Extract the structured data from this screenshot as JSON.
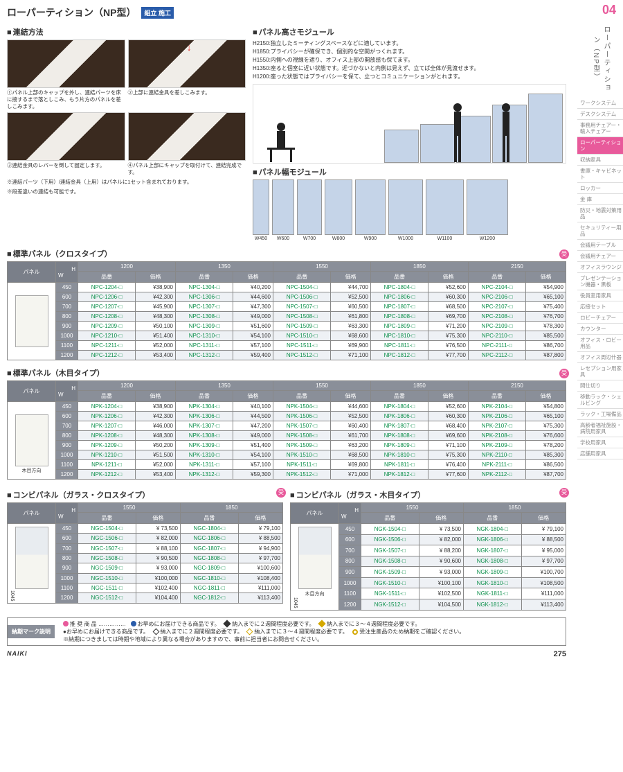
{
  "page": {
    "title": "ローパーティション（NP型）",
    "badge": "組立\n施工",
    "section_number": "04",
    "brand": "NAIKI",
    "page_number": "275"
  },
  "connection": {
    "title": "連結方法",
    "captions": [
      "①パネル上部のキャップを外し、連結パーツを床に接するまで落としこみ、もう片方のパネルを差しこみます。",
      "②上部に連結金具を差しこみます。",
      "③連結金具のレバーを倒して固定します。",
      "④パネル上部にキャップを取付けて、連結完成です。"
    ],
    "note1": "※連結パーツ（下用）/連結金具（上用）はパネルに1セット含まれております。",
    "note2": "※段差違いの連結も可能です。"
  },
  "height_module": {
    "title": "パネル高さモジュール",
    "desc": "H2150:独立したミーティングスペースなどに適しています。\nH1850:プライバシーが確保でき、個別的な空間がつくれます。\nH1550:内側への視線を遮り、オフィス上部の開放感も保てます。\nH1350:座ると個室に近い状態です。近づかないと内側は見えず、立てば全体が見渡せます。\nH1200:座った状態ではプライバシーを保て、立つとコミュニケーションがとれます。",
    "heights": [
      "H1200",
      "H1350",
      "H1550",
      "H1850",
      "H2150"
    ]
  },
  "width_module": {
    "title": "パネル幅モジュール",
    "widths": [
      "W450",
      "W600",
      "W700",
      "W800",
      "W900",
      "W1000",
      "W1100",
      "W1200"
    ]
  },
  "table_cloth": {
    "title": "標準パネル（クロスタイプ）",
    "panel_label": "パネル",
    "h_label": "H",
    "w_label": "W",
    "code_label": "品番",
    "price_label": "価格",
    "heights": [
      "1200",
      "1350",
      "1550",
      "1850",
      "2150"
    ],
    "rows": [
      {
        "w": "450",
        "cells": [
          [
            "NPC-1204-□",
            "¥38,900"
          ],
          [
            "NPC-1304-□",
            "¥40,200"
          ],
          [
            "NPC-1504-□",
            "¥44,700"
          ],
          [
            "NPC-1804-□",
            "¥52,600"
          ],
          [
            "NPC-2104-□",
            "¥54,900"
          ]
        ]
      },
      {
        "w": "600",
        "cells": [
          [
            "NPC-1206-□",
            "¥42,300"
          ],
          [
            "NPC-1306-□",
            "¥44,600"
          ],
          [
            "NPC-1506-□",
            "¥52,500"
          ],
          [
            "NPC-1806-□",
            "¥60,300"
          ],
          [
            "NPC-2106-□",
            "¥65,100"
          ]
        ]
      },
      {
        "w": "700",
        "cells": [
          [
            "NPC-1207-□",
            "¥45,900"
          ],
          [
            "NPC-1307-□",
            "¥47,300"
          ],
          [
            "NPC-1507-□",
            "¥60,500"
          ],
          [
            "NPC-1807-□",
            "¥68,500"
          ],
          [
            "NPC-2107-□",
            "¥75,400"
          ]
        ]
      },
      {
        "w": "800",
        "cells": [
          [
            "NPC-1208-□",
            "¥48,300"
          ],
          [
            "NPC-1308-□",
            "¥49,000"
          ],
          [
            "NPC-1508-□",
            "¥61,800"
          ],
          [
            "NPC-1808-□",
            "¥69,700"
          ],
          [
            "NPC-2108-□",
            "¥76,700"
          ]
        ]
      },
      {
        "w": "900",
        "cells": [
          [
            "NPC-1209-□",
            "¥50,100"
          ],
          [
            "NPC-1309-□",
            "¥51,600"
          ],
          [
            "NPC-1509-□",
            "¥63,300"
          ],
          [
            "NPC-1809-□",
            "¥71,200"
          ],
          [
            "NPC-2109-□",
            "¥78,300"
          ]
        ]
      },
      {
        "w": "1000",
        "cells": [
          [
            "NPC-1210-□",
            "¥51,400"
          ],
          [
            "NPC-1310-□",
            "¥54,100"
          ],
          [
            "NPC-1510-□",
            "¥68,600"
          ],
          [
            "NPC-1810-□",
            "¥75,300"
          ],
          [
            "NPC-2110-□",
            "¥85,500"
          ]
        ]
      },
      {
        "w": "1100",
        "cells": [
          [
            "NPC-1211-□",
            "¥52,000"
          ],
          [
            "NPC-1311-□",
            "¥57,100"
          ],
          [
            "NPC-1511-□",
            "¥69,900"
          ],
          [
            "NPC-1811-□",
            "¥76,500"
          ],
          [
            "NPC-2111-□",
            "¥86,700"
          ]
        ]
      },
      {
        "w": "1200",
        "cells": [
          [
            "NPC-1212-□",
            "¥53,400"
          ],
          [
            "NPC-1312-□",
            "¥59,400"
          ],
          [
            "NPC-1512-□",
            "¥71,100"
          ],
          [
            "NPC-1812-□",
            "¥77,700"
          ],
          [
            "NPC-2112-□",
            "¥87,800"
          ]
        ]
      }
    ]
  },
  "table_wood": {
    "title": "標準パネル（木目タイプ）",
    "rows": [
      {
        "w": "450",
        "cells": [
          [
            "NPK-1204-□",
            "¥38,900"
          ],
          [
            "NPK-1304-□",
            "¥40,100"
          ],
          [
            "NPK-1504-□",
            "¥44,600"
          ],
          [
            "NPK-1804-□",
            "¥52,600"
          ],
          [
            "NPK-2104-□",
            "¥54,800"
          ]
        ]
      },
      {
        "w": "600",
        "cells": [
          [
            "NPK-1206-□",
            "¥42,300"
          ],
          [
            "NPK-1306-□",
            "¥44,500"
          ],
          [
            "NPK-1506-□",
            "¥52,500"
          ],
          [
            "NPK-1806-□",
            "¥60,300"
          ],
          [
            "NPK-2106-□",
            "¥65,100"
          ]
        ]
      },
      {
        "w": "700",
        "cells": [
          [
            "NPK-1207-□",
            "¥46,000"
          ],
          [
            "NPK-1307-□",
            "¥47,200"
          ],
          [
            "NPK-1507-□",
            "¥60,400"
          ],
          [
            "NPK-1807-□",
            "¥68,400"
          ],
          [
            "NPK-2107-□",
            "¥75,300"
          ]
        ]
      },
      {
        "w": "800",
        "cells": [
          [
            "NPK-1208-□",
            "¥48,300"
          ],
          [
            "NPK-1308-□",
            "¥49,000"
          ],
          [
            "NPK-1508-□",
            "¥61,700"
          ],
          [
            "NPK-1808-□",
            "¥69,600"
          ],
          [
            "NPK-2108-□",
            "¥76,600"
          ]
        ]
      },
      {
        "w": "900",
        "cells": [
          [
            "NPK-1209-□",
            "¥50,200"
          ],
          [
            "NPK-1309-□",
            "¥51,400"
          ],
          [
            "NPK-1509-□",
            "¥63,200"
          ],
          [
            "NPK-1809-□",
            "¥71,100"
          ],
          [
            "NPK-2109-□",
            "¥78,200"
          ]
        ]
      },
      {
        "w": "1000",
        "cells": [
          [
            "NPK-1210-□",
            "¥51,500"
          ],
          [
            "NPK-1310-□",
            "¥54,100"
          ],
          [
            "NPK-1510-□",
            "¥68,500"
          ],
          [
            "NPK-1810-□",
            "¥75,300"
          ],
          [
            "NPK-2110-□",
            "¥85,300"
          ]
        ]
      },
      {
        "w": "1100",
        "cells": [
          [
            "NPK-1211-□",
            "¥52,000"
          ],
          [
            "NPK-1311-□",
            "¥57,100"
          ],
          [
            "NPK-1511-□",
            "¥69,800"
          ],
          [
            "NPK-1811-□",
            "¥76,400"
          ],
          [
            "NPK-2111-□",
            "¥86,500"
          ]
        ]
      },
      {
        "w": "1200",
        "cells": [
          [
            "NPK-1212-□",
            "¥53,400"
          ],
          [
            "NPK-1312-□",
            "¥59,300"
          ],
          [
            "NPK-1512-□",
            "¥71,000"
          ],
          [
            "NPK-1812-□",
            "¥77,600"
          ],
          [
            "NPK-2112-□",
            "¥87,700"
          ]
        ]
      }
    ]
  },
  "table_glass_cloth": {
    "title": "コンビパネル（ガラス・クロスタイプ）",
    "heights": [
      "1550",
      "1850"
    ],
    "dim": "1045",
    "rows": [
      {
        "w": "450",
        "cells": [
          [
            "NGC-1504-□",
            "¥ 73,500"
          ],
          [
            "NGC-1804-□",
            "¥ 79,100"
          ]
        ]
      },
      {
        "w": "600",
        "cells": [
          [
            "NGC-1506-□",
            "¥ 82,000"
          ],
          [
            "NGC-1806-□",
            "¥ 88,500"
          ]
        ]
      },
      {
        "w": "700",
        "cells": [
          [
            "NGC-1507-□",
            "¥ 88,100"
          ],
          [
            "NGC-1807-□",
            "¥ 94,900"
          ]
        ]
      },
      {
        "w": "800",
        "cells": [
          [
            "NGC-1508-□",
            "¥ 90,500"
          ],
          [
            "NGC-1808-□",
            "¥ 97,700"
          ]
        ]
      },
      {
        "w": "900",
        "cells": [
          [
            "NGC-1509-□",
            "¥ 93,000"
          ],
          [
            "NGC-1809-□",
            "¥100,600"
          ]
        ]
      },
      {
        "w": "1000",
        "cells": [
          [
            "NGC-1510-□",
            "¥100,000"
          ],
          [
            "NGC-1810-□",
            "¥108,400"
          ]
        ]
      },
      {
        "w": "1100",
        "cells": [
          [
            "NGC-1511-□",
            "¥102,400"
          ],
          [
            "NGC-1811-□",
            "¥111,000"
          ]
        ]
      },
      {
        "w": "1200",
        "cells": [
          [
            "NGC-1512-□",
            "¥104,400"
          ],
          [
            "NGC-1812-□",
            "¥113,400"
          ]
        ]
      }
    ]
  },
  "table_glass_wood": {
    "title": "コンビパネル（ガラス・木目タイプ）",
    "heights": [
      "1550",
      "1850"
    ],
    "rows": [
      {
        "w": "450",
        "cells": [
          [
            "NGK-1504-□",
            "¥ 73,500"
          ],
          [
            "NGK-1804-□",
            "¥ 79,100"
          ]
        ]
      },
      {
        "w": "600",
        "cells": [
          [
            "NGK-1506-□",
            "¥ 82,000"
          ],
          [
            "NGK-1806-□",
            "¥ 88,500"
          ]
        ]
      },
      {
        "w": "700",
        "cells": [
          [
            "NGK-1507-□",
            "¥ 88,200"
          ],
          [
            "NGK-1807-□",
            "¥ 95,000"
          ]
        ]
      },
      {
        "w": "800",
        "cells": [
          [
            "NGK-1508-□",
            "¥ 90,600"
          ],
          [
            "NGK-1808-□",
            "¥ 97,700"
          ]
        ]
      },
      {
        "w": "900",
        "cells": [
          [
            "NGK-1509-□",
            "¥ 93,000"
          ],
          [
            "NGK-1809-□",
            "¥100,700"
          ]
        ]
      },
      {
        "w": "1000",
        "cells": [
          [
            "NGK-1510-□",
            "¥100,100"
          ],
          [
            "NGK-1810-□",
            "¥108,500"
          ]
        ]
      },
      {
        "w": "1100",
        "cells": [
          [
            "NGK-1511-□",
            "¥102,500"
          ],
          [
            "NGK-1811-□",
            "¥111,000"
          ]
        ]
      },
      {
        "w": "1200",
        "cells": [
          [
            "NGK-1512-□",
            "¥104,500"
          ],
          [
            "NGK-1812-□",
            "¥113,400"
          ]
        ]
      }
    ]
  },
  "sidebar": {
    "title": "ローパーティション（NP型）",
    "items": [
      "ワークシステム",
      "デスクシステム",
      "事務用チェアー・輸入チェアー",
      "ローパーティション",
      "収納家具",
      "書庫・キャビネット",
      "ロッカー",
      "金 庫",
      "防災・地震対策用品",
      "セキュリティー用品",
      "会議用テーブル",
      "会議用チェアー",
      "オフィスラウンジ",
      "プレゼンテーション機器・黒板",
      "役員室用家具",
      "応接セット",
      "ロビーチェアー",
      "カウンター",
      "オフィス・ロビー用品",
      "オフィス周辺什器",
      "レセプション用家具",
      "間仕切り",
      "移動ラック・シェルビング",
      "ラック・工場備品",
      "高齢者福祉施設・病院用家具",
      "学校用家具",
      "店舗用家具"
    ],
    "active_index": 3
  },
  "legend": {
    "label": "納期マーク説明",
    "line1a": "推 奨 商 品 ……………",
    "line1b": "お早めにお届けできる商品です。",
    "line1c": "納入までに２週間程度必要です。",
    "line1d": "納入までに３～４週間程度必要です。",
    "line2a": "●お早めにお届けできる商品です。",
    "line2b": "納入までに２週間程度必要です。",
    "line2c": "納入までに３～４週間程度必要です。",
    "line2d": "受注生産品のため納期をご確認ください。",
    "note": "※納期につきましては時期や地域により異なる場合がありますので、事前に担当者にお問合せください。"
  }
}
